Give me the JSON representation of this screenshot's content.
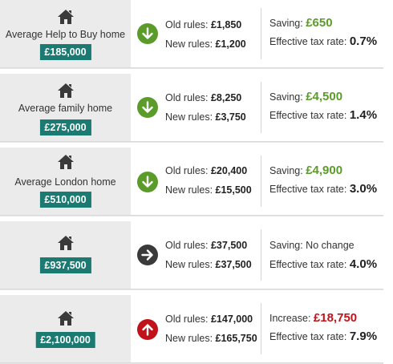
{
  "colors": {
    "panel_bg": "#ebebeb",
    "price_badge": "#1b7a72",
    "saving_green": "#5a9b2a",
    "increase_red": "#c1121a",
    "neutral_dark": "#3a3a3a"
  },
  "rows": [
    {
      "home_label": "Average Help to Buy home",
      "price": "£185,000",
      "icon": "arrow-down-icon",
      "old_label": "Old rules:",
      "old_value": "£1,850",
      "new_label": "New rules:",
      "new_value": "£1,200",
      "change_label": "Saving:",
      "change_value": "£650",
      "rate_label": "Effective tax rate:",
      "rate_value": "0.7%"
    },
    {
      "home_label": "Average family home",
      "price": "£275,000",
      "icon": "arrow-down-icon",
      "old_label": "Old rules:",
      "old_value": "£8,250",
      "new_label": "New rules:",
      "new_value": "£3,750",
      "change_label": "Saving:",
      "change_value": "£4,500",
      "rate_label": "Effective tax rate:",
      "rate_value": "1.4%"
    },
    {
      "home_label": "Average London home",
      "price": "£510,000",
      "icon": "arrow-down-icon",
      "old_label": "Old rules:",
      "old_value": "£20,400",
      "new_label": "New rules:",
      "new_value": "£15,500",
      "change_label": "Saving:",
      "change_value": "£4,900",
      "rate_label": "Effective tax rate:",
      "rate_value": "3.0%"
    },
    {
      "home_label": "",
      "price": "£937,500",
      "icon": "arrow-right-icon",
      "old_label": "Old rules:",
      "old_value": "£37,500",
      "new_label": "New rules:",
      "new_value": "£37,500",
      "change_label": "Saving: No change",
      "change_value": "",
      "rate_label": "Effective tax rate:",
      "rate_value": "4.0%"
    },
    {
      "home_label": "",
      "price": "£2,100,000",
      "icon": "arrow-up-icon",
      "old_label": "Old rules:",
      "old_value": "£147,000",
      "new_label": "New rules:",
      "new_value": "£165,750",
      "change_label": "Increase:",
      "change_value": "£18,750",
      "rate_label": "Effective tax rate:",
      "rate_value": "7.9%"
    }
  ]
}
